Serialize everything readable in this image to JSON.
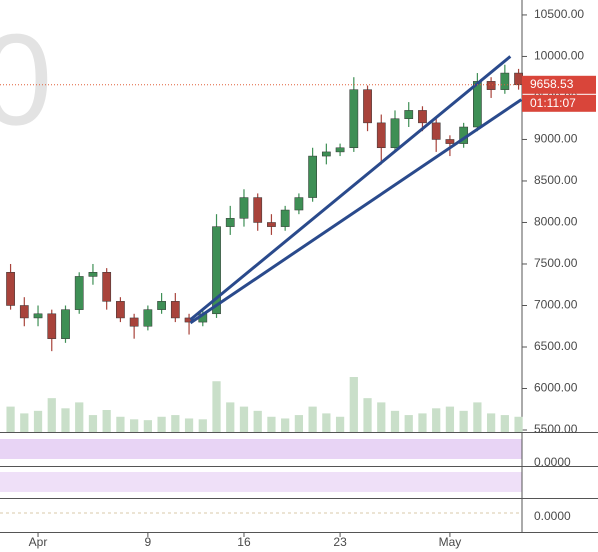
{
  "chart_data": {
    "type": "candlestick",
    "watermark": "0",
    "x": [
      -1,
      0,
      1,
      2,
      3,
      4,
      5,
      6,
      7,
      8,
      9,
      10,
      11,
      12,
      13,
      14,
      15,
      16,
      17,
      18,
      19,
      20,
      21,
      22,
      23,
      24,
      25,
      26,
      27,
      28,
      29,
      30,
      31,
      32,
      33,
      34,
      35,
      36
    ],
    "open": [
      7400,
      7000,
      6850,
      6900,
      6600,
      6950,
      7350,
      7400,
      7050,
      6850,
      6750,
      6950,
      7050,
      6850,
      6800,
      6900,
      7950,
      8050,
      8300,
      8000,
      7950,
      8150,
      8300,
      8800,
      8850,
      8900,
      9600,
      9200,
      8900,
      9250,
      9350,
      9200,
      9000,
      8950,
      9150,
      9700,
      9600,
      9800
    ],
    "high": [
      7500,
      7100,
      7000,
      6950,
      7000,
      7400,
      7500,
      7450,
      7100,
      6900,
      7000,
      7150,
      7150,
      6900,
      6950,
      8100,
      8200,
      8400,
      8350,
      8100,
      8200,
      8350,
      8900,
      8950,
      8950,
      9750,
      9650,
      9300,
      9350,
      9450,
      9400,
      9250,
      9050,
      9200,
      9800,
      9750,
      9900,
      9850
    ],
    "low": [
      6950,
      6750,
      6750,
      6450,
      6550,
      6900,
      7250,
      6950,
      6800,
      6600,
      6700,
      6900,
      6800,
      6650,
      6750,
      6850,
      7850,
      7950,
      7900,
      7850,
      7900,
      8100,
      8250,
      8700,
      8800,
      8850,
      9100,
      8700,
      8850,
      9150,
      9100,
      8850,
      8800,
      8900,
      9100,
      9500,
      9550,
      9600
    ],
    "close": [
      7000,
      6850,
      6900,
      6600,
      6950,
      7350,
      7400,
      7050,
      6850,
      6750,
      6950,
      7050,
      6850,
      6800,
      6900,
      7950,
      8050,
      8300,
      8000,
      7950,
      8150,
      8300,
      8800,
      8850,
      8900,
      9600,
      9200,
      8900,
      9250,
      9350,
      9200,
      9000,
      8950,
      9150,
      9700,
      9600,
      9800,
      9658.53
    ],
    "volume": [
      30,
      22,
      25,
      40,
      28,
      35,
      20,
      26,
      18,
      15,
      14,
      18,
      20,
      16,
      15,
      60,
      35,
      30,
      25,
      18,
      16,
      20,
      30,
      22,
      18,
      65,
      40,
      35,
      25,
      20,
      22,
      28,
      30,
      25,
      35,
      22,
      20,
      18
    ],
    "up_color": "#3e8f55",
    "down_color": "#a8433b",
    "volume_color": "#c9dfc9",
    "xlim": [
      -1.77,
      36.25
    ],
    "xticks": [
      {
        "value": 1,
        "label": "Apr"
      },
      9,
      16,
      23,
      {
        "value": 31,
        "label": "May"
      }
    ],
    "ylim": [
      5476,
      10680
    ],
    "yticks": [
      {
        "value": 5500,
        "label": "5500.00"
      },
      {
        "value": 6000,
        "label": "6000.00"
      },
      {
        "value": 6500,
        "label": "6500.00"
      },
      {
        "value": 7000,
        "label": "7000.00"
      },
      {
        "value": 7500,
        "label": "7500.00"
      },
      {
        "value": 8000,
        "label": "8000.00"
      },
      {
        "value": 8500,
        "label": "8500.00"
      },
      {
        "value": 9000,
        "label": "9000.00"
      },
      {
        "value": 9500,
        "label": "9500.00"
      },
      {
        "value": 10000,
        "label": "10000.00"
      },
      {
        "value": 10500,
        "label": "10500.00"
      }
    ],
    "last_price": 9658.53,
    "countdown": "01:11:07",
    "trendlines": [
      {
        "x": [
          12.1,
          35.4
        ],
        "y": [
          6830,
          10000
        ]
      },
      {
        "x": [
          12.1,
          36.2
        ],
        "y": [
          6790,
          9480
        ]
      }
    ],
    "oscillator_labels": [
      {
        "value": 0,
        "label": "0.0000"
      },
      {
        "value": 0,
        "label": "0.0000"
      }
    ]
  }
}
